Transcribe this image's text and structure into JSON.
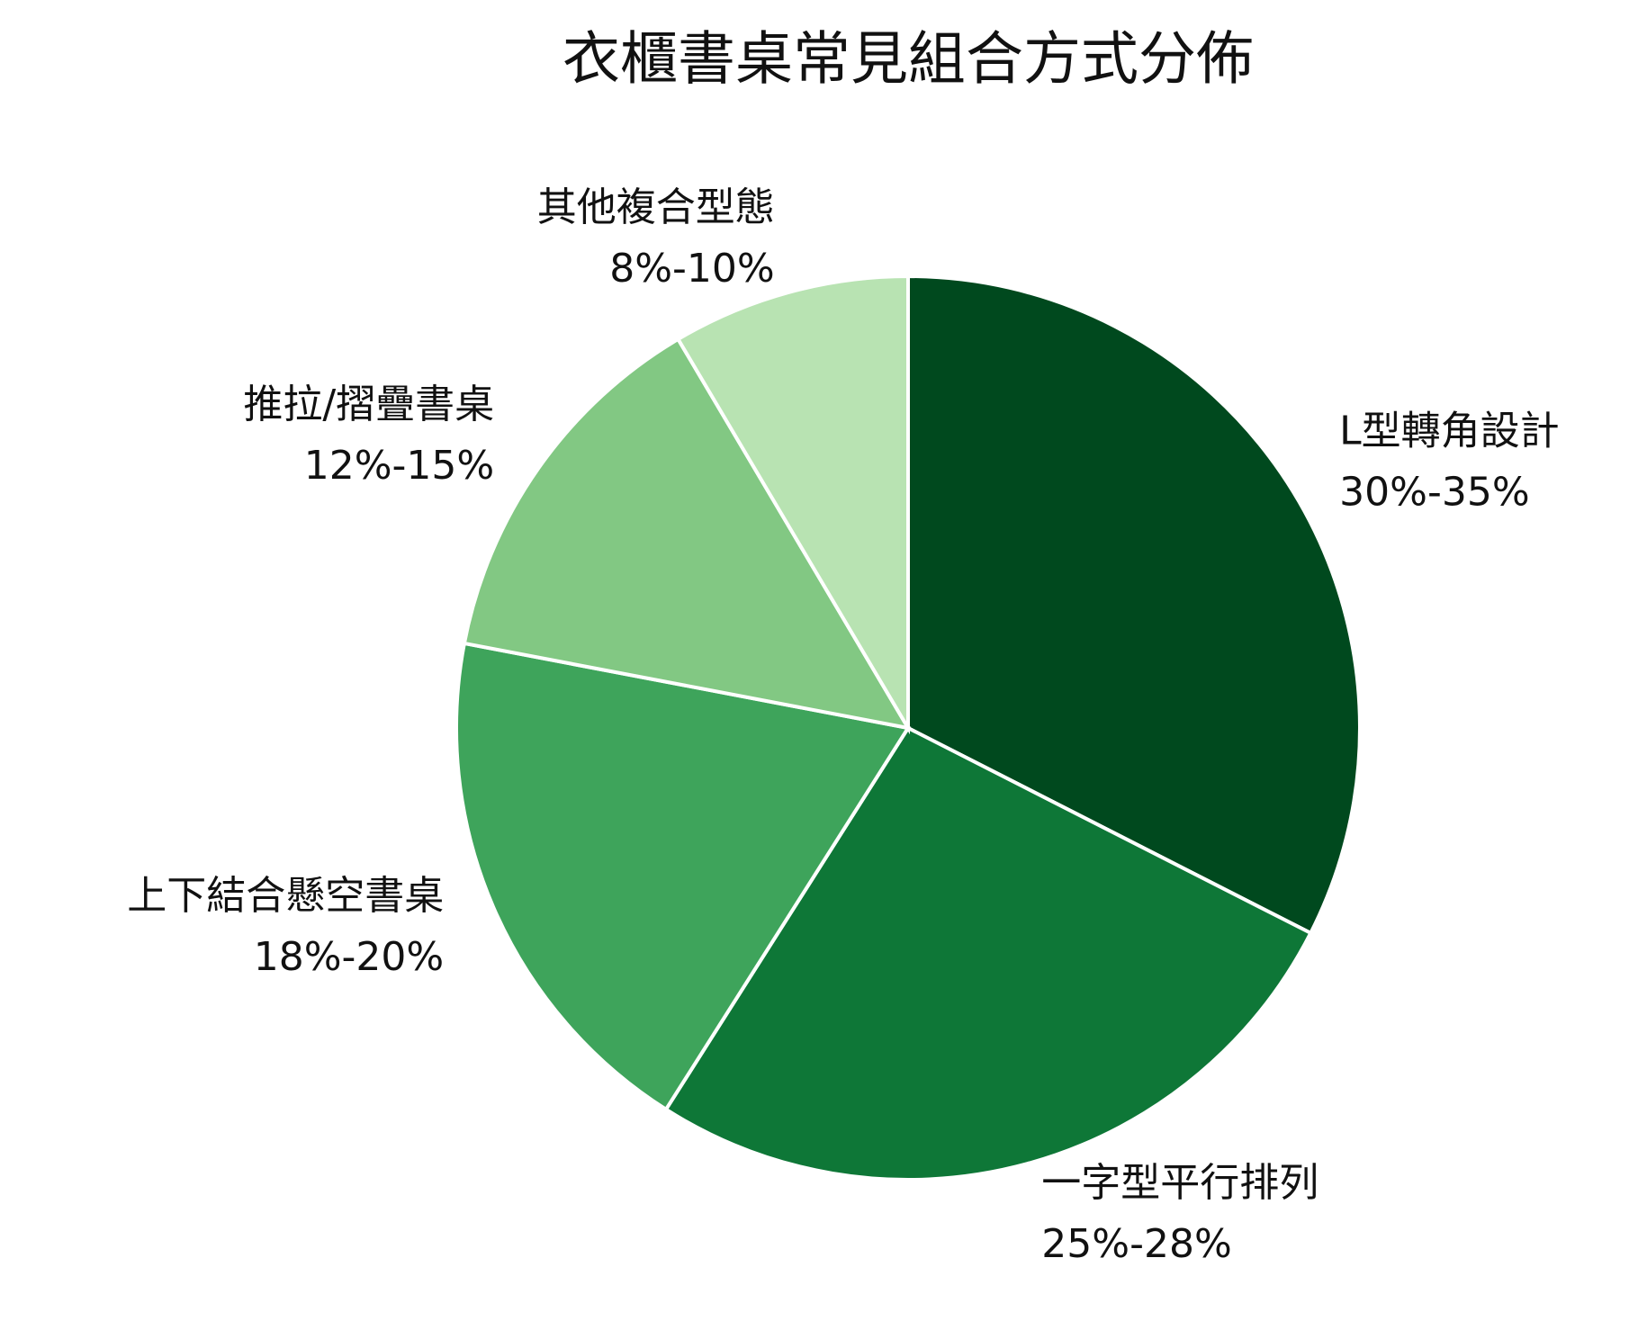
{
  "chart_data": {
    "type": "pie",
    "title": "衣櫃書桌常見組合方式分佈",
    "categories": [
      "L型轉角設計",
      "一字型平行排列",
      "上下結合懸空書桌",
      "推拉/摺疊書桌",
      "其他複合型態"
    ],
    "values": [
      32.5,
      26.5,
      19,
      13.5,
      8.5
    ],
    "value_labels": [
      "30%-35%",
      "25%-28%",
      "18%-20%",
      "12%-15%",
      "8%-10%"
    ],
    "colors": [
      "#00491e",
      "#0e7737",
      "#3ea45b",
      "#82c883",
      "#b8e3b2"
    ]
  }
}
